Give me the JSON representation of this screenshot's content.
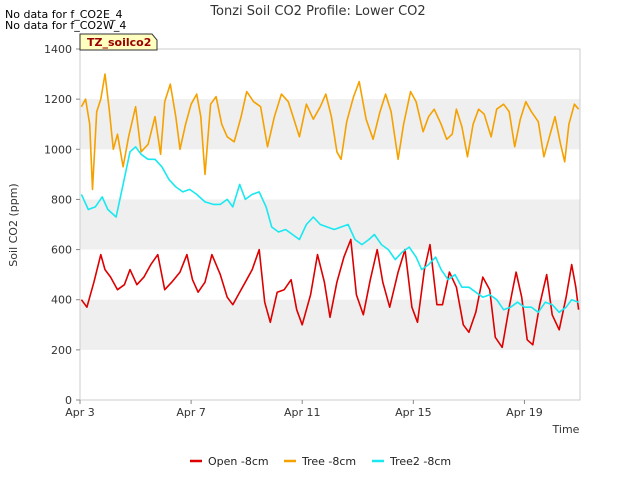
{
  "notes": [
    "No data for f_CO2E_4",
    "No data for f_CO2W_4"
  ],
  "badge": "TZ_soilco2",
  "colors": {
    "band": "#efefef",
    "open": "#dd0000",
    "tree": "#f5a100",
    "tree2": "#19e8f0"
  },
  "chart_data": {
    "type": "line",
    "title": "Tonzi Soil CO2 Profile: Lower CO2",
    "xlabel": "Time",
    "ylabel": "Soil CO2 (ppm)",
    "xlim": [
      0,
      18
    ],
    "ylim": [
      0,
      1400
    ],
    "x_unit": "days since Apr 3",
    "yticks": [
      0,
      200,
      400,
      600,
      800,
      1000,
      1200,
      1400
    ],
    "xticks": [
      {
        "x": 0,
        "label": "Apr 3"
      },
      {
        "x": 4,
        "label": "Apr 7"
      },
      {
        "x": 8,
        "label": "Apr 11"
      },
      {
        "x": 12,
        "label": "Apr 15"
      },
      {
        "x": 16,
        "label": "Apr 19"
      }
    ],
    "legend_position": "bottom",
    "series": [
      {
        "name": "Open -8cm",
        "color": "#dd0000",
        "points": [
          [
            0.05,
            400
          ],
          [
            0.25,
            370
          ],
          [
            0.5,
            470
          ],
          [
            0.75,
            580
          ],
          [
            0.9,
            520
          ],
          [
            1.1,
            490
          ],
          [
            1.35,
            440
          ],
          [
            1.6,
            460
          ],
          [
            1.8,
            520
          ],
          [
            2.05,
            460
          ],
          [
            2.3,
            490
          ],
          [
            2.55,
            540
          ],
          [
            2.8,
            580
          ],
          [
            3.05,
            440
          ],
          [
            3.3,
            470
          ],
          [
            3.6,
            510
          ],
          [
            3.85,
            580
          ],
          [
            4.05,
            480
          ],
          [
            4.25,
            430
          ],
          [
            4.5,
            470
          ],
          [
            4.75,
            580
          ],
          [
            5.05,
            500
          ],
          [
            5.3,
            410
          ],
          [
            5.5,
            380
          ],
          [
            5.7,
            420
          ],
          [
            5.95,
            470
          ],
          [
            6.2,
            520
          ],
          [
            6.45,
            600
          ],
          [
            6.65,
            390
          ],
          [
            6.85,
            310
          ],
          [
            7.1,
            430
          ],
          [
            7.35,
            440
          ],
          [
            7.6,
            480
          ],
          [
            7.8,
            360
          ],
          [
            8.0,
            300
          ],
          [
            8.3,
            420
          ],
          [
            8.55,
            580
          ],
          [
            8.8,
            470
          ],
          [
            9.0,
            330
          ],
          [
            9.25,
            470
          ],
          [
            9.5,
            570
          ],
          [
            9.75,
            640
          ],
          [
            9.95,
            420
          ],
          [
            10.2,
            340
          ],
          [
            10.45,
            480
          ],
          [
            10.7,
            600
          ],
          [
            10.9,
            470
          ],
          [
            11.15,
            370
          ],
          [
            11.45,
            510
          ],
          [
            11.7,
            600
          ],
          [
            11.95,
            370
          ],
          [
            12.15,
            310
          ],
          [
            12.4,
            520
          ],
          [
            12.6,
            620
          ],
          [
            12.85,
            380
          ],
          [
            13.05,
            380
          ],
          [
            13.3,
            510
          ],
          [
            13.55,
            450
          ],
          [
            13.8,
            300
          ],
          [
            14.0,
            270
          ],
          [
            14.25,
            350
          ],
          [
            14.5,
            490
          ],
          [
            14.75,
            440
          ],
          [
            14.95,
            250
          ],
          [
            15.2,
            210
          ],
          [
            15.45,
            370
          ],
          [
            15.7,
            510
          ],
          [
            15.9,
            410
          ],
          [
            16.1,
            240
          ],
          [
            16.3,
            220
          ],
          [
            16.55,
            380
          ],
          [
            16.8,
            500
          ],
          [
            17.0,
            340
          ],
          [
            17.25,
            280
          ],
          [
            17.5,
            410
          ],
          [
            17.7,
            540
          ],
          [
            17.85,
            450
          ],
          [
            17.95,
            360
          ]
        ]
      },
      {
        "name": "Tree -8cm",
        "color": "#f5a100",
        "points": [
          [
            0.05,
            1170
          ],
          [
            0.2,
            1200
          ],
          [
            0.35,
            1100
          ],
          [
            0.45,
            840
          ],
          [
            0.6,
            1150
          ],
          [
            0.75,
            1200
          ],
          [
            0.9,
            1300
          ],
          [
            1.05,
            1160
          ],
          [
            1.2,
            1000
          ],
          [
            1.35,
            1060
          ],
          [
            1.55,
            930
          ],
          [
            1.75,
            1050
          ],
          [
            2.0,
            1170
          ],
          [
            2.2,
            990
          ],
          [
            2.45,
            1020
          ],
          [
            2.7,
            1130
          ],
          [
            2.9,
            980
          ],
          [
            3.05,
            1190
          ],
          [
            3.25,
            1260
          ],
          [
            3.45,
            1130
          ],
          [
            3.6,
            1000
          ],
          [
            3.8,
            1100
          ],
          [
            4.0,
            1180
          ],
          [
            4.2,
            1220
          ],
          [
            4.35,
            1130
          ],
          [
            4.5,
            900
          ],
          [
            4.7,
            1180
          ],
          [
            4.9,
            1210
          ],
          [
            5.1,
            1100
          ],
          [
            5.3,
            1050
          ],
          [
            5.55,
            1030
          ],
          [
            5.8,
            1130
          ],
          [
            6.0,
            1230
          ],
          [
            6.25,
            1190
          ],
          [
            6.5,
            1170
          ],
          [
            6.75,
            1010
          ],
          [
            7.0,
            1130
          ],
          [
            7.25,
            1220
          ],
          [
            7.5,
            1190
          ],
          [
            7.7,
            1120
          ],
          [
            7.9,
            1050
          ],
          [
            8.15,
            1180
          ],
          [
            8.4,
            1120
          ],
          [
            8.65,
            1170
          ],
          [
            8.85,
            1220
          ],
          [
            9.05,
            1130
          ],
          [
            9.25,
            990
          ],
          [
            9.4,
            960
          ],
          [
            9.6,
            1110
          ],
          [
            9.85,
            1210
          ],
          [
            10.05,
            1270
          ],
          [
            10.3,
            1120
          ],
          [
            10.55,
            1040
          ],
          [
            10.8,
            1150
          ],
          [
            11.0,
            1220
          ],
          [
            11.2,
            1150
          ],
          [
            11.45,
            960
          ],
          [
            11.65,
            1100
          ],
          [
            11.9,
            1230
          ],
          [
            12.1,
            1190
          ],
          [
            12.35,
            1070
          ],
          [
            12.55,
            1130
          ],
          [
            12.75,
            1160
          ],
          [
            13.0,
            1100
          ],
          [
            13.2,
            1040
          ],
          [
            13.4,
            1060
          ],
          [
            13.55,
            1160
          ],
          [
            13.75,
            1090
          ],
          [
            13.95,
            970
          ],
          [
            14.15,
            1100
          ],
          [
            14.35,
            1160
          ],
          [
            14.55,
            1140
          ],
          [
            14.8,
            1050
          ],
          [
            15.0,
            1160
          ],
          [
            15.25,
            1180
          ],
          [
            15.45,
            1150
          ],
          [
            15.65,
            1010
          ],
          [
            15.85,
            1120
          ],
          [
            16.05,
            1190
          ],
          [
            16.25,
            1150
          ],
          [
            16.5,
            1110
          ],
          [
            16.7,
            970
          ],
          [
            16.9,
            1050
          ],
          [
            17.1,
            1130
          ],
          [
            17.3,
            1020
          ],
          [
            17.45,
            950
          ],
          [
            17.6,
            1100
          ],
          [
            17.8,
            1180
          ],
          [
            17.95,
            1160
          ]
        ]
      },
      {
        "name": "Tree2 -8cm",
        "color": "#19e8f0",
        "points": [
          [
            0.05,
            820
          ],
          [
            0.3,
            760
          ],
          [
            0.55,
            770
          ],
          [
            0.8,
            810
          ],
          [
            1.0,
            760
          ],
          [
            1.3,
            730
          ],
          [
            1.55,
            860
          ],
          [
            1.8,
            990
          ],
          [
            2.0,
            1010
          ],
          [
            2.2,
            980
          ],
          [
            2.45,
            960
          ],
          [
            2.7,
            960
          ],
          [
            2.95,
            930
          ],
          [
            3.2,
            880
          ],
          [
            3.45,
            850
          ],
          [
            3.7,
            830
          ],
          [
            3.95,
            840
          ],
          [
            4.2,
            820
          ],
          [
            4.5,
            790
          ],
          [
            4.8,
            780
          ],
          [
            5.05,
            780
          ],
          [
            5.3,
            800
          ],
          [
            5.5,
            770
          ],
          [
            5.75,
            860
          ],
          [
            5.95,
            800
          ],
          [
            6.2,
            820
          ],
          [
            6.45,
            830
          ],
          [
            6.7,
            770
          ],
          [
            6.9,
            690
          ],
          [
            7.15,
            670
          ],
          [
            7.4,
            680
          ],
          [
            7.65,
            660
          ],
          [
            7.9,
            640
          ],
          [
            8.15,
            700
          ],
          [
            8.4,
            730
          ],
          [
            8.65,
            700
          ],
          [
            8.9,
            690
          ],
          [
            9.15,
            680
          ],
          [
            9.4,
            690
          ],
          [
            9.65,
            700
          ],
          [
            9.9,
            640
          ],
          [
            10.15,
            620
          ],
          [
            10.4,
            640
          ],
          [
            10.6,
            660
          ],
          [
            10.85,
            620
          ],
          [
            11.1,
            600
          ],
          [
            11.35,
            560
          ],
          [
            11.6,
            590
          ],
          [
            11.85,
            610
          ],
          [
            12.1,
            570
          ],
          [
            12.3,
            520
          ],
          [
            12.55,
            540
          ],
          [
            12.8,
            570
          ],
          [
            13.0,
            520
          ],
          [
            13.25,
            480
          ],
          [
            13.5,
            500
          ],
          [
            13.75,
            450
          ],
          [
            14.0,
            450
          ],
          [
            14.25,
            430
          ],
          [
            14.5,
            410
          ],
          [
            14.75,
            420
          ],
          [
            15.0,
            400
          ],
          [
            15.25,
            360
          ],
          [
            15.5,
            370
          ],
          [
            15.75,
            390
          ],
          [
            16.0,
            370
          ],
          [
            16.25,
            370
          ],
          [
            16.5,
            350
          ],
          [
            16.75,
            390
          ],
          [
            17.0,
            380
          ],
          [
            17.25,
            350
          ],
          [
            17.5,
            370
          ],
          [
            17.7,
            400
          ],
          [
            17.95,
            390
          ]
        ]
      }
    ]
  }
}
